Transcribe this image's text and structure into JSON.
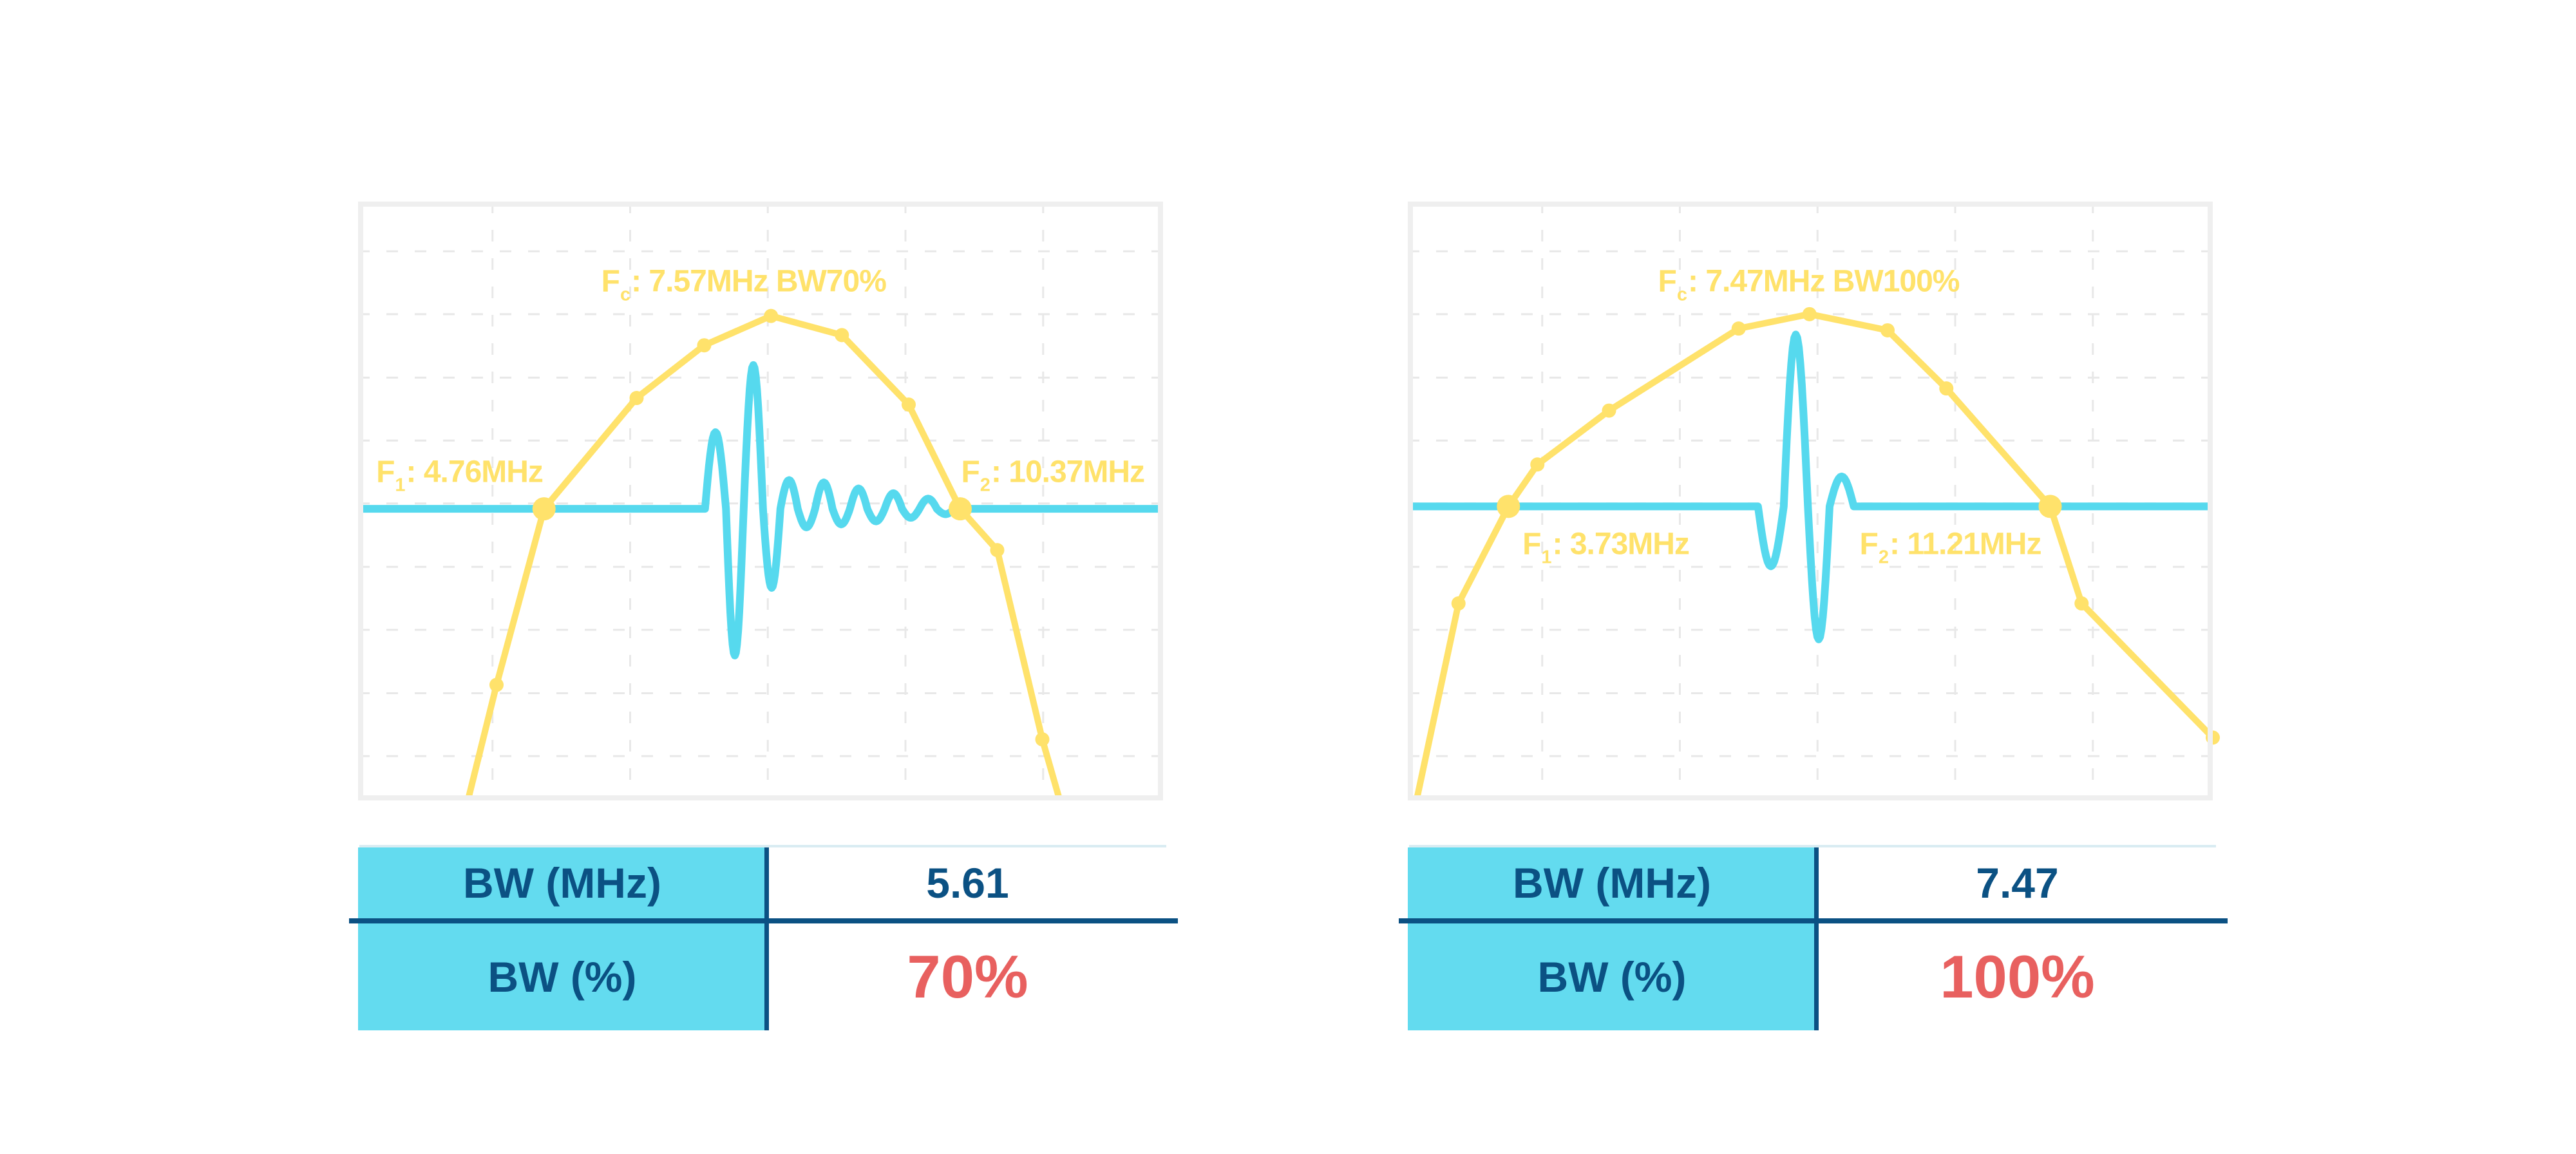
{
  "colors": {
    "yellow": "#FFE26B",
    "cyan": "#56D9EE",
    "table_header_bg": "#63DBEF",
    "navy": "#0B5183",
    "red": "#E8605F",
    "panel_border": "#EFEFEF",
    "grid": "#E8E8E8",
    "table_topline": "#D9ECF2",
    "background": "#FFFFFF"
  },
  "chart_data": [
    {
      "name": "bw70-panel",
      "type": "line",
      "frequencies_mhz": {
        "f1": 4.76,
        "fc": 7.57,
        "f2": 10.37
      },
      "bandwidth": {
        "mhz": 5.61,
        "percent": 70
      },
      "fc_label": {
        "prefix": "F",
        "sub": "c",
        "rest": ": 7.57MHz BW70%",
        "x": 0.479,
        "y": 0.133
      },
      "f1_label": {
        "prefix": "F",
        "sub": "1",
        "rest": ": 4.76MHz",
        "x": 0.126,
        "y": 0.452
      },
      "f2_label": {
        "prefix": "F",
        "sub": "2",
        "rest": ": 10.37MHz",
        "x": 0.863,
        "y": 0.452
      },
      "grid": {
        "x": [
          0.167,
          0.338,
          0.509,
          0.68,
          0.851
        ],
        "y": [
          0.083,
          0.188,
          0.294,
          0.399,
          0.504,
          0.61,
          0.715,
          0.821,
          0.926
        ]
      },
      "spectrum": {
        "points": [
          [
            0.118,
            1.1
          ],
          [
            0.172,
            0.807
          ],
          [
            0.231,
            0.513
          ],
          [
            0.346,
            0.328
          ],
          [
            0.43,
            0.24
          ],
          [
            0.513,
            0.191
          ],
          [
            0.601,
            0.223
          ],
          [
            0.684,
            0.339
          ],
          [
            0.748,
            0.513
          ],
          [
            0.794,
            0.582
          ],
          [
            0.85,
            0.898
          ],
          [
            0.893,
            1.1
          ]
        ],
        "dot_indices": [
          1,
          2,
          3,
          4,
          5,
          6,
          7,
          8,
          9,
          10
        ],
        "big_dot_indices": [
          2,
          8
        ]
      },
      "pulse": {
        "baseline": 0.513,
        "start": 0.431,
        "segments": [
          [
            0.026,
            0.128
          ],
          [
            0.022,
            -0.245
          ],
          [
            0.024,
            0.24
          ],
          [
            0.0216,
            -0.132
          ],
          [
            0.0216,
            0.048
          ],
          [
            0.0216,
            -0.031
          ],
          [
            0.0216,
            0.044
          ],
          [
            0.0216,
            -0.026
          ],
          [
            0.0216,
            0.034
          ],
          [
            0.0216,
            -0.021
          ],
          [
            0.0216,
            0.026
          ],
          [
            0.0216,
            -0.015
          ],
          [
            0.0216,
            0.017
          ],
          [
            0.0216,
            -0.009
          ]
        ]
      },
      "table": {
        "rows": [
          {
            "label": "BW (MHz)",
            "value": "5.61"
          },
          {
            "label": "BW (%)",
            "value": "70%"
          }
        ]
      }
    },
    {
      "name": "bw100-panel",
      "type": "line",
      "frequencies_mhz": {
        "f1": 3.73,
        "fc": 7.47,
        "f2": 11.21
      },
      "bandwidth": {
        "mhz": 7.47,
        "percent": 100
      },
      "fc_label": {
        "prefix": "F",
        "sub": "c",
        "rest": ": 7.47MHz BW100%",
        "x": 0.498,
        "y": 0.133
      },
      "f1_label": {
        "prefix": "F",
        "sub": "1",
        "rest": ": 3.73MHz",
        "x": 0.246,
        "y": 0.572
      },
      "f2_label": {
        "prefix": "F",
        "sub": "2",
        "rest": ": 11.21MHz",
        "x": 0.674,
        "y": 0.572
      },
      "grid": {
        "x": [
          0.167,
          0.338,
          0.509,
          0.68,
          0.851
        ],
        "y": [
          0.083,
          0.188,
          0.294,
          0.399,
          0.504,
          0.61,
          0.715,
          0.821,
          0.926
        ]
      },
      "spectrum": {
        "points": [
          [
            -0.005,
            1.1
          ],
          [
            0.063,
            0.671
          ],
          [
            0.125,
            0.509
          ],
          [
            0.161,
            0.439
          ],
          [
            0.25,
            0.349
          ],
          [
            0.411,
            0.212
          ],
          [
            0.499,
            0.188
          ],
          [
            0.596,
            0.215
          ],
          [
            0.669,
            0.312
          ],
          [
            0.798,
            0.509
          ],
          [
            0.837,
            0.671
          ],
          [
            1.0,
            0.895
          ]
        ],
        "dot_indices": [
          1,
          2,
          3,
          4,
          5,
          6,
          7,
          8,
          9,
          10,
          11
        ],
        "big_dot_indices": [
          2,
          9
        ]
      },
      "pulse": {
        "baseline": 0.509,
        "start": 0.435,
        "segments": [
          [
            0.032,
            -0.1
          ],
          [
            0.03,
            0.287
          ],
          [
            0.027,
            -0.222
          ],
          [
            0.03,
            0.05
          ]
        ]
      },
      "table": {
        "rows": [
          {
            "label": "BW (MHz)",
            "value": "7.47"
          },
          {
            "label": "BW (%)",
            "value": "100%"
          }
        ]
      }
    }
  ]
}
